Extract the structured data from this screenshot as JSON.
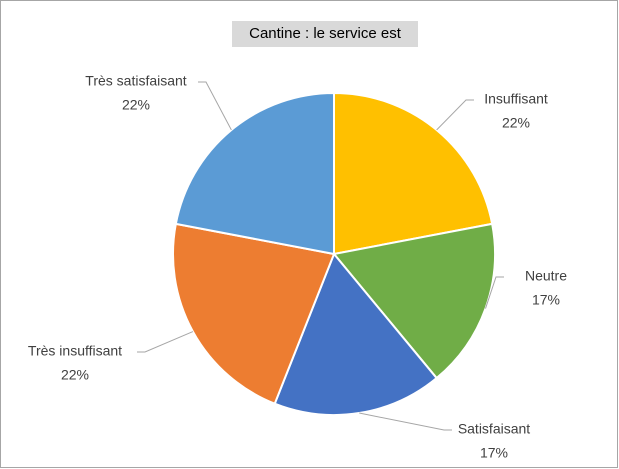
{
  "chart_data": {
    "type": "pie",
    "title": "Cantine : le service est",
    "categories": [
      "Insuffisant",
      "Neutre",
      "Satisfaisant",
      "Très insuffisant",
      "Très satisfaisant"
    ],
    "values": [
      22,
      17,
      17,
      22,
      22
    ],
    "value_labels": [
      "22%",
      "17%",
      "17%",
      "22%",
      "22%"
    ],
    "colors": [
      "#FFC000",
      "#70AD47",
      "#4472C4",
      "#ED7D31",
      "#5B9BD5"
    ]
  }
}
